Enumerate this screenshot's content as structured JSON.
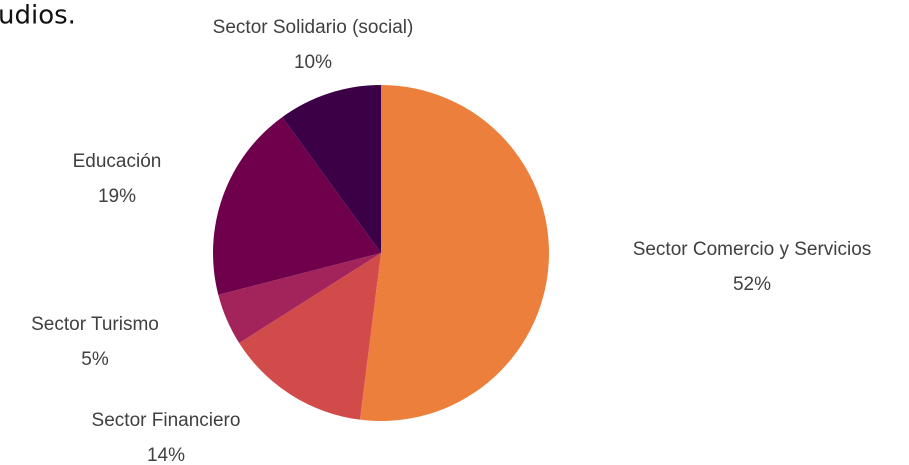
{
  "chart_data": {
    "type": "pie",
    "title": "udios.",
    "categories": [
      "Sector Comercio y Servicios",
      "Sector Financiero",
      "Sector Turismo",
      "Educación",
      "Sector Solidario (social)"
    ],
    "values": [
      52,
      14,
      5,
      19,
      10
    ],
    "value_labels": [
      "52%",
      "14%",
      "5%",
      "19%",
      "10%"
    ],
    "colors": [
      "#ec7f3c",
      "#d24b4b",
      "#a3245a",
      "#6e004c",
      "#3c0046"
    ]
  }
}
